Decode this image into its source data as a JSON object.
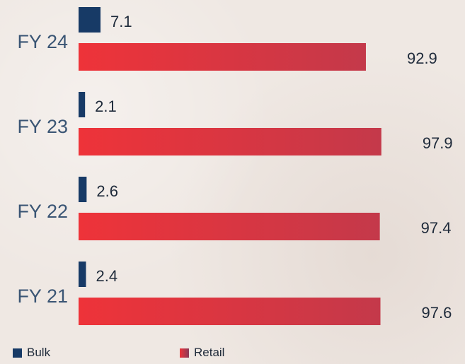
{
  "chart_data": {
    "type": "bar",
    "orientation": "horizontal",
    "categories": [
      "FY 24",
      "FY 23",
      "FY 22",
      "FY 21"
    ],
    "series": [
      {
        "name": "Bulk",
        "values": [
          7.1,
          2.1,
          2.6,
          2.4
        ],
        "color": "#173a66"
      },
      {
        "name": "Retail",
        "values": [
          92.9,
          97.9,
          97.4,
          97.6
        ],
        "color": "#e23a3f"
      }
    ],
    "title": "",
    "xlabel": "",
    "ylabel": "",
    "grid": false,
    "legend_position": "bottom-left"
  }
}
